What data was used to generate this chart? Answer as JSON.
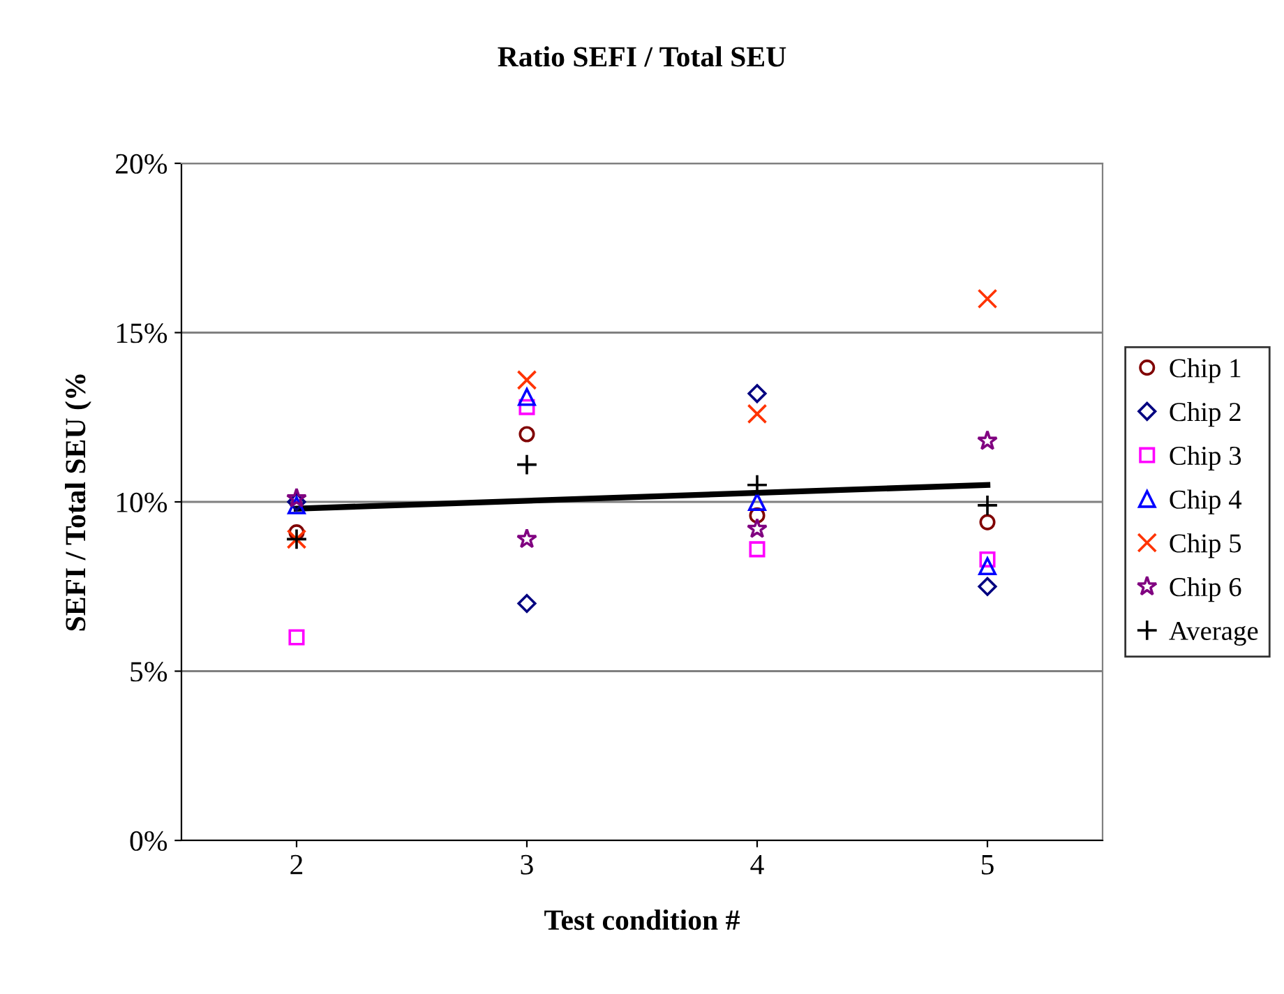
{
  "chart_data": {
    "type": "scatter",
    "title": "Ratio SEFI / Total SEU",
    "xlabel": "Test condition #",
    "ylabel": "SEFI / Total SEU (%",
    "xlim": [
      1.5,
      5.5
    ],
    "xticks": [
      2,
      3,
      4,
      5
    ],
    "ylim": [
      0,
      20
    ],
    "yticks": [
      {
        "value": 0,
        "label": "0%"
      },
      {
        "value": 5,
        "label": "5%"
      },
      {
        "value": 10,
        "label": "10%"
      },
      {
        "value": 15,
        "label": "15%"
      },
      {
        "value": 20,
        "label": "20%"
      }
    ],
    "grid": "y",
    "legend": "right",
    "x": [
      2,
      3,
      4,
      5
    ],
    "series": [
      {
        "name": "Chip 1",
        "color": "#800000",
        "marker": "circle",
        "values": [
          9.1,
          12.0,
          9.6,
          9.4
        ]
      },
      {
        "name": "Chip 2",
        "color": "#000080",
        "marker": "diamond",
        "values": [
          10.0,
          7.0,
          13.2,
          7.5
        ]
      },
      {
        "name": "Chip 3",
        "color": "#ff00ff",
        "marker": "square",
        "values": [
          6.0,
          12.8,
          8.6,
          8.3
        ]
      },
      {
        "name": "Chip 4",
        "color": "#0000ff",
        "marker": "triangle",
        "values": [
          9.9,
          13.1,
          10.0,
          8.1
        ]
      },
      {
        "name": "Chip 5",
        "color": "#ff3300",
        "marker": "cross",
        "values": [
          8.9,
          13.6,
          12.6,
          16.0
        ]
      },
      {
        "name": "Chip 6",
        "color": "#800080",
        "marker": "star",
        "values": [
          10.1,
          8.9,
          9.2,
          11.8
        ]
      },
      {
        "name": "Average",
        "color": "#000000",
        "marker": "plus",
        "values": [
          8.9,
          11.1,
          10.5,
          9.9
        ]
      },
      {
        "type": "line",
        "color": "#000000",
        "marker": "none",
        "x": [
          2,
          5
        ],
        "values": [
          9.8,
          10.5
        ]
      }
    ]
  }
}
